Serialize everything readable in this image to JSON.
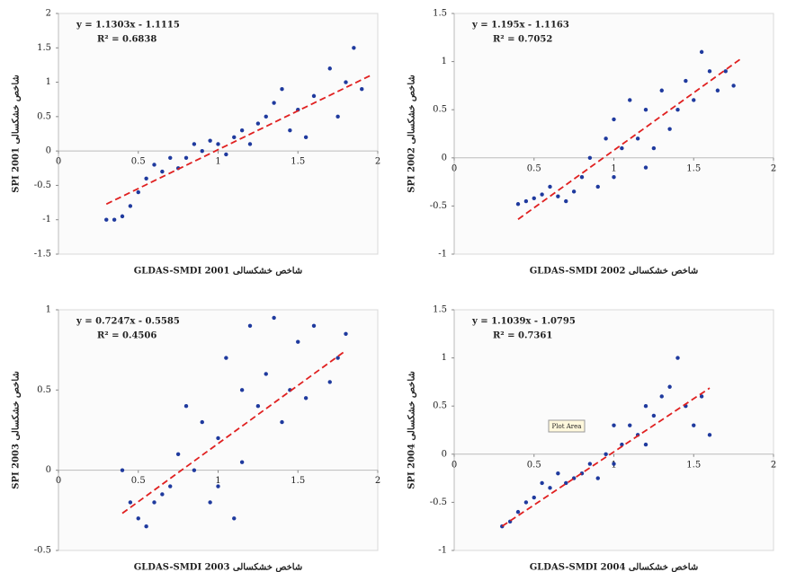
{
  "chart_data": [
    {
      "type": "scatter",
      "xlabel": "GLDAS-SMDI 2001 شاخص خشکسالی",
      "ylabel": "SPI 2001 شاخص خشکسالی",
      "equation": "y = 1.1303x - 1.1115",
      "r2": "R² = 0.6838",
      "color": "#1f3a9e",
      "trend_color": "#e02020",
      "trendline": {
        "slope": 1.1303,
        "intercept": -1.1115,
        "x": [
          0.3,
          1.95
        ]
      },
      "xlim": [
        0,
        2
      ],
      "xticks": [
        0,
        0.5,
        1,
        1.5,
        2
      ],
      "ylim": [
        -1.5,
        2
      ],
      "yticks": [
        -1.5,
        -1,
        -0.5,
        0,
        0.5,
        1,
        1.5,
        2
      ],
      "x": [
        0.3,
        0.35,
        0.4,
        0.45,
        0.5,
        0.55,
        0.6,
        0.65,
        0.7,
        0.75,
        0.8,
        0.85,
        0.9,
        0.95,
        1.0,
        1.05,
        1.1,
        1.15,
        1.2,
        1.25,
        1.3,
        1.35,
        1.4,
        1.45,
        1.5,
        1.55,
        1.6,
        1.7,
        1.8,
        1.85,
        1.9,
        1.75
      ],
      "y": [
        -1.0,
        -1.0,
        -0.95,
        -0.8,
        -0.6,
        -0.4,
        -0.2,
        -0.3,
        -0.1,
        -0.25,
        -0.1,
        0.1,
        0,
        0.15,
        0.1,
        -0.05,
        0.2,
        0.3,
        0.1,
        0.4,
        0.5,
        0.7,
        0.9,
        0.3,
        0.6,
        0.2,
        0.8,
        1.2,
        1.0,
        1.5,
        0.9,
        0.5
      ]
    },
    {
      "type": "scatter",
      "xlabel": "GLDAS-SMDI 2002 شاخص خشکسالی",
      "ylabel": "SPI 2002 شاخص خشکسالی",
      "equation": "y = 1.195x - 1.1163",
      "r2": "R² = 0.7052",
      "color": "#1f3a9e",
      "trend_color": "#e02020",
      "trendline": {
        "slope": 1.195,
        "intercept": -1.1163,
        "x": [
          0.4,
          1.8
        ]
      },
      "xlim": [
        0,
        2
      ],
      "xticks": [
        0,
        0.5,
        1,
        1.5,
        2
      ],
      "ylim": [
        -1,
        1.5
      ],
      "yticks": [
        -1,
        -0.5,
        0,
        0.5,
        1,
        1.5
      ],
      "x": [
        0.4,
        0.45,
        0.5,
        0.55,
        0.6,
        0.65,
        0.7,
        0.75,
        0.8,
        0.85,
        0.9,
        0.95,
        1.0,
        1.05,
        1.1,
        1.15,
        1.2,
        1.25,
        1.3,
        1.35,
        1.4,
        1.45,
        1.5,
        1.55,
        1.6,
        1.65,
        1.7,
        1.75,
        1.2,
        1.0
      ],
      "y": [
        -0.48,
        -0.45,
        -0.42,
        -0.38,
        -0.3,
        -0.4,
        -0.45,
        -0.35,
        -0.2,
        0,
        -0.3,
        0.2,
        0.4,
        0.1,
        0.6,
        0.2,
        0.5,
        0.1,
        0.7,
        0.3,
        0.5,
        0.8,
        0.6,
        1.1,
        0.9,
        0.7,
        0.9,
        0.75,
        -0.1,
        -0.2
      ]
    },
    {
      "type": "scatter",
      "xlabel": "GLDAS-SMDI 2003 شاخص خشکسالی",
      "ylabel": "SPI 2003 شاخص خشکسالی",
      "equation": "y = 0.7247x - 0.5585",
      "r2": "R² = 0.4506",
      "color": "#1f3a9e",
      "trend_color": "#e02020",
      "trendline": {
        "slope": 0.7247,
        "intercept": -0.5585,
        "x": [
          0.4,
          1.8
        ]
      },
      "xlim": [
        0,
        2
      ],
      "xticks": [
        0,
        0.5,
        1,
        1.5,
        2
      ],
      "ylim": [
        -0.5,
        1
      ],
      "yticks": [
        -0.5,
        0,
        0.5,
        1
      ],
      "x": [
        0.4,
        0.45,
        0.5,
        0.55,
        0.6,
        0.65,
        0.7,
        0.75,
        0.8,
        0.85,
        0.9,
        0.95,
        1.0,
        1.05,
        1.1,
        1.15,
        1.2,
        1.25,
        1.3,
        1.35,
        1.4,
        1.45,
        1.5,
        1.55,
        1.6,
        1.7,
        1.75,
        1.8,
        1.0,
        1.15
      ],
      "y": [
        0,
        -0.2,
        -0.3,
        -0.35,
        -0.2,
        -0.15,
        -0.1,
        0.1,
        0.4,
        0,
        0.3,
        -0.2,
        0.2,
        0.7,
        -0.3,
        0.5,
        0.9,
        0.4,
        0.6,
        0.95,
        0.3,
        0.5,
        0.8,
        0.45,
        0.9,
        0.55,
        0.7,
        0.85,
        -0.1,
        0.05
      ]
    },
    {
      "type": "scatter",
      "xlabel": "GLDAS-SMDI 2004 شاخص خشکسالی",
      "ylabel": "SPI 2004 شاخص خشکسالی",
      "equation": "y = 1.1039x - 1.0795",
      "r2": "R² = 0.7361",
      "color": "#1f3a9e",
      "trend_color": "#e02020",
      "tooltip": "Plot Area",
      "trendline": {
        "slope": 1.1039,
        "intercept": -1.0795,
        "x": [
          0.3,
          1.6
        ]
      },
      "xlim": [
        0,
        2
      ],
      "xticks": [
        0,
        0.5,
        1,
        1.5,
        2
      ],
      "ylim": [
        -1,
        1.5
      ],
      "yticks": [
        -1,
        -0.5,
        0,
        0.5,
        1,
        1.5
      ],
      "x": [
        0.3,
        0.35,
        0.4,
        0.45,
        0.5,
        0.55,
        0.6,
        0.65,
        0.7,
        0.75,
        0.8,
        0.85,
        0.9,
        0.95,
        1.0,
        1.05,
        1.1,
        1.15,
        1.2,
        1.25,
        1.3,
        1.35,
        1.4,
        1.45,
        1.5,
        1.55,
        1.6,
        1.0,
        1.2
      ],
      "y": [
        -0.75,
        -0.7,
        -0.6,
        -0.5,
        -0.45,
        -0.3,
        -0.35,
        -0.2,
        -0.3,
        -0.25,
        -0.2,
        -0.1,
        -0.25,
        0,
        -0.1,
        0.1,
        0.3,
        0.2,
        0.5,
        0.4,
        0.6,
        0.7,
        1.0,
        0.5,
        0.3,
        0.6,
        0.2,
        0.3,
        0.1
      ]
    }
  ]
}
